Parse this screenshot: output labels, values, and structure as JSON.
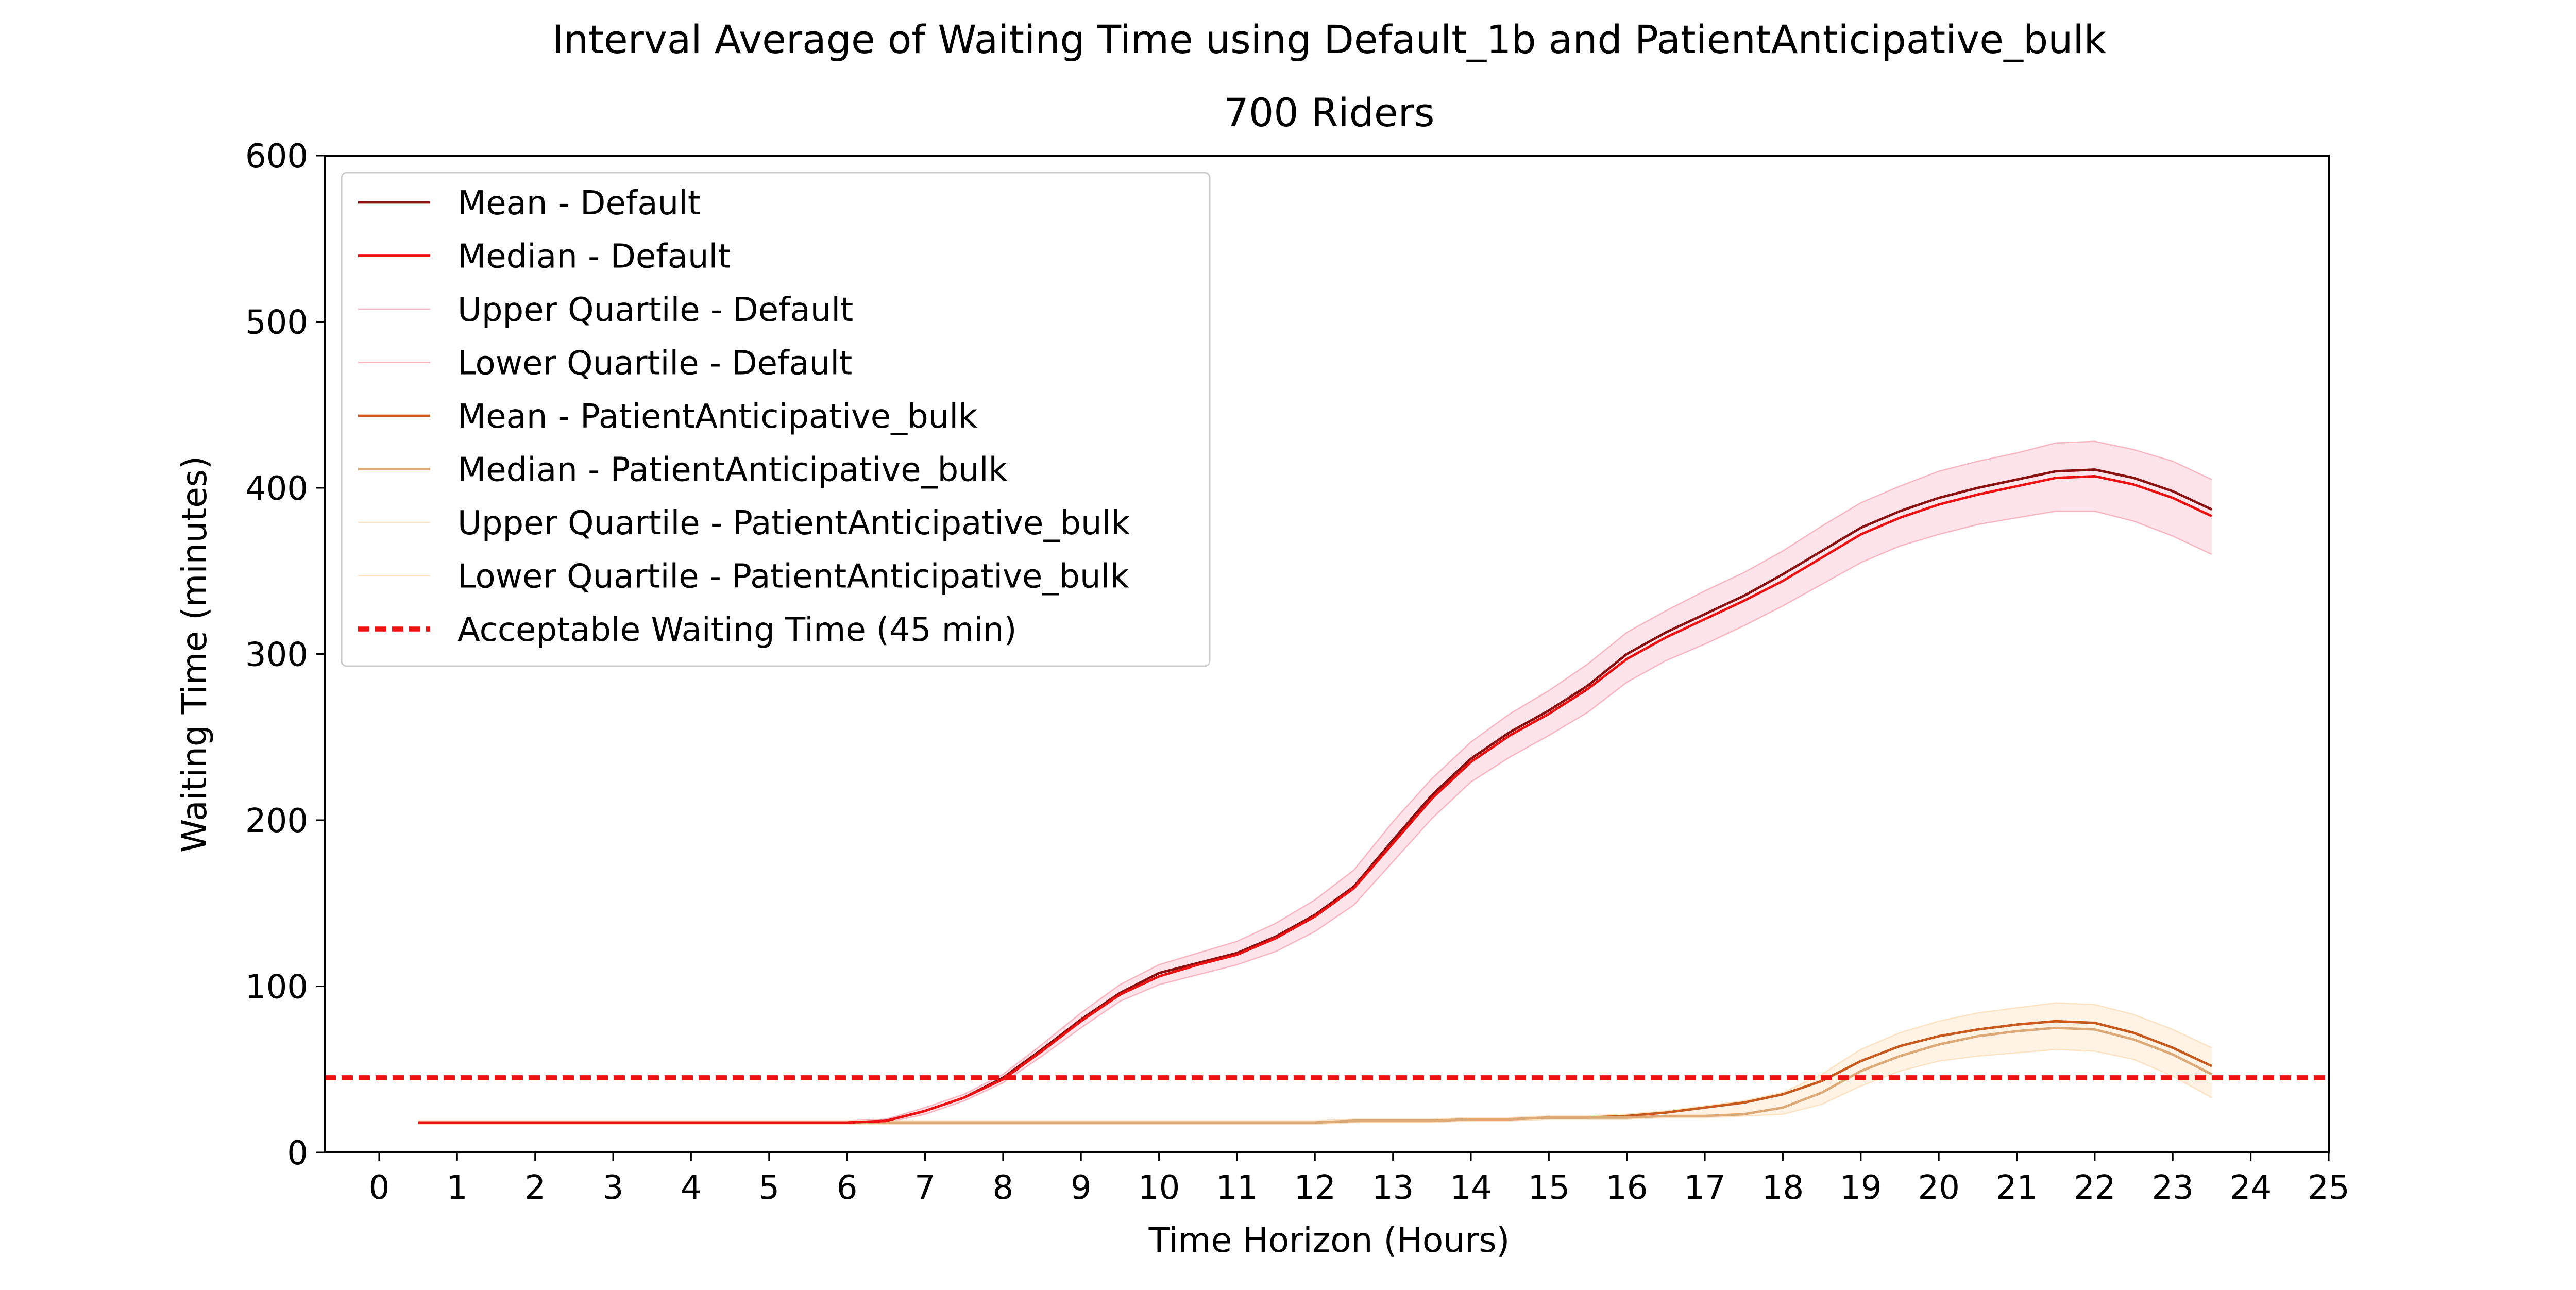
{
  "chart_data": {
    "type": "line",
    "title": "Interval Average of Waiting Time using Default_1b and PatientAnticipative_bulk",
    "subtitle": "700 Riders",
    "xlabel": "Time Horizon (Hours)",
    "ylabel": "Waiting Time (minutes)",
    "xlim": [
      -0.7,
      25
    ],
    "ylim": [
      0,
      600
    ],
    "xticks": [
      0,
      1,
      2,
      3,
      4,
      5,
      6,
      7,
      8,
      9,
      10,
      11,
      12,
      13,
      14,
      15,
      16,
      17,
      18,
      19,
      20,
      21,
      22,
      23,
      24,
      25
    ],
    "yticks": [
      0,
      100,
      200,
      300,
      400,
      500,
      600
    ],
    "grid": false,
    "legend_position": "upper-left",
    "x": [
      0.5,
      1,
      1.5,
      2,
      2.5,
      3,
      3.5,
      4,
      4.5,
      5,
      5.5,
      6,
      6.5,
      7,
      7.5,
      8,
      8.5,
      9,
      9.5,
      10,
      10.5,
      11,
      11.5,
      12,
      12.5,
      13,
      13.5,
      14,
      14.5,
      15,
      15.5,
      16,
      16.5,
      17,
      17.5,
      18,
      18.5,
      19,
      19.5,
      20,
      20.5,
      21,
      21.5,
      22,
      22.5,
      23,
      23.5
    ],
    "series": [
      {
        "name": "Mean - Default",
        "color": "#8B1010",
        "width": 1.5,
        "dash": "",
        "values": [
          18,
          18,
          18,
          18,
          18,
          18,
          18,
          18,
          18,
          18,
          18,
          18,
          19,
          25,
          33,
          45,
          62,
          80,
          96,
          108,
          114,
          120,
          130,
          143,
          160,
          188,
          215,
          237,
          253,
          266,
          281,
          300,
          313,
          324,
          335,
          348,
          362,
          376,
          386,
          394,
          400,
          405,
          410,
          411,
          406,
          398,
          387
        ]
      },
      {
        "name": "Median - Default",
        "color": "#EE1111",
        "width": 1.5,
        "dash": "",
        "values": [
          18,
          18,
          18,
          18,
          18,
          18,
          18,
          18,
          18,
          18,
          18,
          18,
          19,
          25,
          33,
          44,
          61,
          79,
          95,
          106,
          113,
          119,
          129,
          142,
          159,
          186,
          213,
          235,
          251,
          264,
          279,
          297,
          310,
          321,
          332,
          344,
          358,
          372,
          382,
          390,
          396,
          401,
          406,
          407,
          402,
          394,
          383
        ]
      },
      {
        "name": "Upper Quartile - Default",
        "color": "#F7B6C2",
        "width": 0.8,
        "dash": "",
        "values": [
          19,
          19,
          19,
          19,
          19,
          19,
          19,
          19,
          19,
          19,
          19,
          19,
          20,
          27,
          35,
          47,
          65,
          84,
          101,
          113,
          120,
          127,
          138,
          152,
          170,
          199,
          225,
          247,
          264,
          278,
          294,
          313,
          326,
          338,
          349,
          362,
          377,
          391,
          401,
          410,
          416,
          421,
          427,
          428,
          423,
          416,
          405
        ]
      },
      {
        "name": "Lower Quartile - Default",
        "color": "#F7B6C2",
        "width": 0.8,
        "dash": "",
        "values": [
          17,
          17,
          17,
          17,
          17,
          17,
          17,
          17,
          17,
          17,
          17,
          17,
          18,
          23,
          31,
          42,
          58,
          75,
          91,
          101,
          107,
          113,
          121,
          133,
          149,
          175,
          201,
          223,
          238,
          251,
          265,
          283,
          296,
          306,
          317,
          329,
          342,
          355,
          365,
          372,
          378,
          382,
          386,
          386,
          380,
          371,
          360
        ]
      },
      {
        "name": "Mean - PatientAnticipative_bulk",
        "color": "#C85A1E",
        "width": 1.5,
        "dash": "",
        "values": [
          18,
          18,
          18,
          18,
          18,
          18,
          18,
          18,
          18,
          18,
          18,
          18,
          18,
          18,
          18,
          18,
          18,
          18,
          18,
          18,
          18,
          18,
          18,
          18,
          19,
          19,
          19,
          20,
          20,
          21,
          21,
          22,
          24,
          27,
          30,
          35,
          43,
          55,
          64,
          70,
          74,
          77,
          79,
          78,
          72,
          63,
          52
        ]
      },
      {
        "name": "Median - PatientAnticipative_bulk",
        "color": "#DDAA77",
        "width": 1.5,
        "dash": "",
        "values": [
          18,
          18,
          18,
          18,
          18,
          18,
          18,
          18,
          18,
          18,
          18,
          18,
          18,
          18,
          18,
          18,
          18,
          18,
          18,
          18,
          18,
          18,
          18,
          18,
          19,
          19,
          19,
          20,
          20,
          21,
          21,
          21,
          22,
          22,
          23,
          27,
          36,
          49,
          58,
          65,
          70,
          73,
          75,
          74,
          68,
          59,
          47
        ]
      },
      {
        "name": "Upper Quartile - PatientAnticipative_bulk",
        "color": "#FBE3C4",
        "width": 0.8,
        "dash": "",
        "values": [
          19,
          19,
          19,
          19,
          19,
          19,
          19,
          19,
          19,
          19,
          19,
          19,
          19,
          19,
          19,
          19,
          19,
          19,
          19,
          19,
          19,
          19,
          19,
          19,
          20,
          20,
          20,
          21,
          21,
          22,
          22,
          23,
          25,
          28,
          31,
          36,
          47,
          62,
          72,
          79,
          84,
          87,
          90,
          89,
          83,
          74,
          63
        ]
      },
      {
        "name": "Lower Quartile - PatientAnticipative_bulk",
        "color": "#FBE3C4",
        "width": 0.8,
        "dash": "",
        "values": [
          17,
          17,
          17,
          17,
          17,
          17,
          17,
          17,
          17,
          17,
          17,
          17,
          17,
          17,
          17,
          17,
          17,
          17,
          17,
          17,
          17,
          17,
          17,
          17,
          18,
          18,
          18,
          19,
          19,
          20,
          20,
          20,
          21,
          21,
          22,
          23,
          29,
          40,
          49,
          55,
          58,
          60,
          62,
          61,
          56,
          46,
          33
        ]
      },
      {
        "name": "Acceptable Waiting Time (45 min)",
        "color": "#EE1111",
        "width": 3,
        "dash": "22 11",
        "constant": 45
      }
    ],
    "bands": [
      {
        "lower": "Lower Quartile - Default",
        "upper": "Upper Quartile - Default",
        "color": "#FCE4EA"
      },
      {
        "lower": "Lower Quartile - PatientAnticipative_bulk",
        "upper": "Upper Quartile - PatientAnticipative_bulk",
        "color": "#FEF3E4"
      }
    ]
  }
}
